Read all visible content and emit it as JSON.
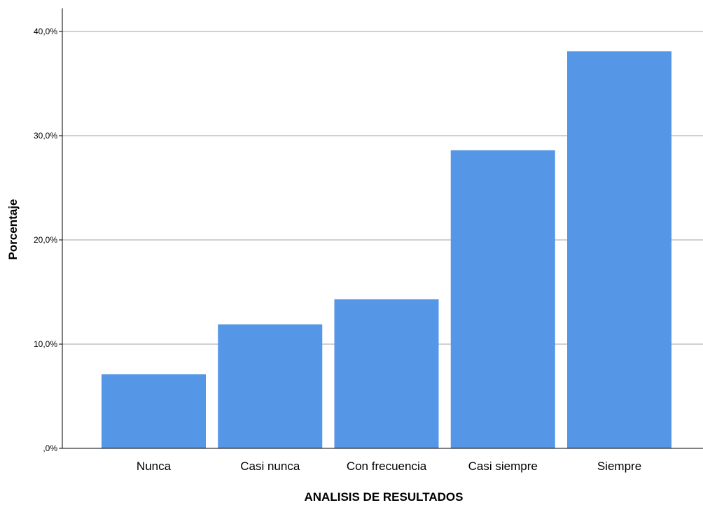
{
  "chart_data": {
    "type": "bar",
    "title": "",
    "xlabel": "ANALISIS DE RESULTADOS",
    "ylabel": "Porcentaje",
    "categories": [
      "Nunca",
      "Casi nunca",
      "Con frecuencia",
      "Casi siempre",
      "Siempre"
    ],
    "values": [
      7.1,
      11.9,
      14.3,
      28.6,
      38.1
    ],
    "ylim": [
      0,
      42
    ],
    "yticks": [
      0,
      10,
      20,
      30,
      40
    ],
    "ytick_labels": [
      ",0%",
      "10,0%",
      "20,0%",
      "30,0%",
      "40,0%"
    ],
    "grid": true,
    "legend": "none"
  },
  "colors": {
    "bar": "#5596E6",
    "grid": "#b4b4b4",
    "axis": "#000000"
  }
}
